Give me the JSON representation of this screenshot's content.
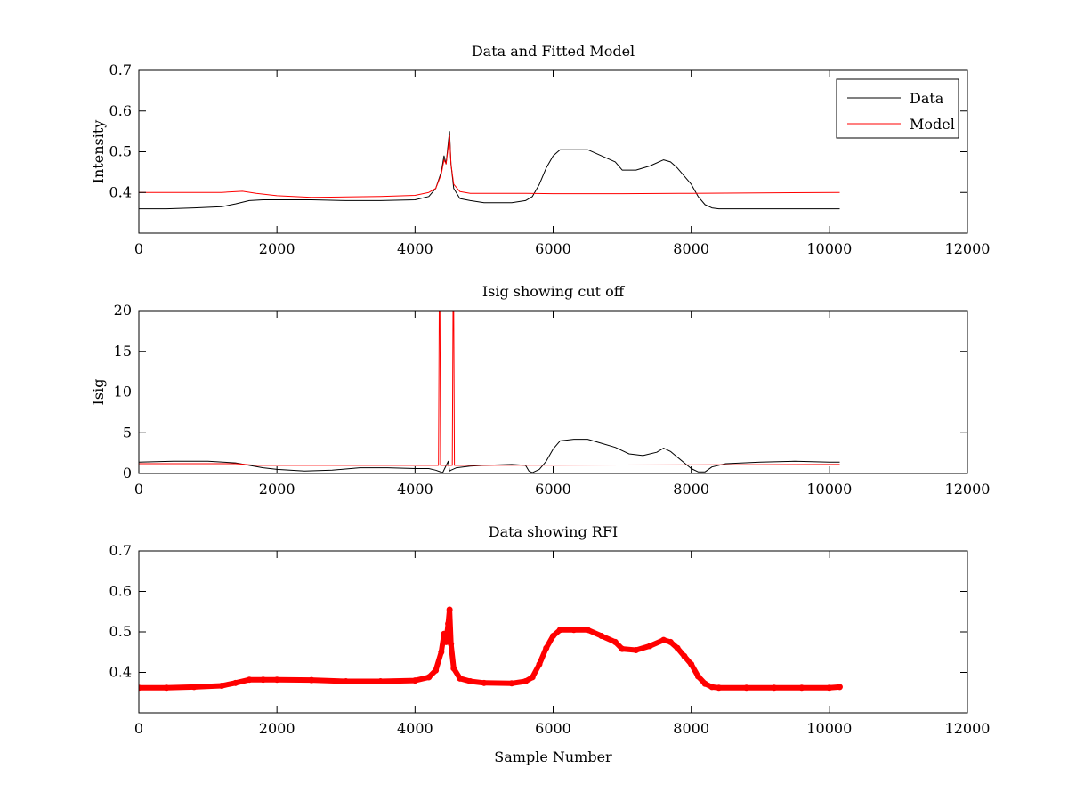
{
  "chart_data": [
    {
      "type": "line",
      "title": "Data and Fitted Model",
      "xlabel": "",
      "ylabel": "Intensity",
      "xlim": [
        0,
        12000
      ],
      "ylim": [
        0.3,
        0.7
      ],
      "xticks": [
        0,
        2000,
        4000,
        6000,
        8000,
        10000,
        12000
      ],
      "xtick_labels": [
        "0",
        "2000",
        "4000",
        "6000",
        "8000",
        "10000",
        "12000"
      ],
      "yticks": [
        0.4,
        0.5,
        0.6,
        0.7
      ],
      "ytick_labels": [
        "0.4",
        "0.5",
        "0.6",
        "0.7"
      ],
      "grid": false,
      "legend": {
        "placement": "top-right",
        "entries": [
          "Data",
          "Model"
        ]
      },
      "series": [
        {
          "name": "Data",
          "color": "#000000",
          "x": [
            0,
            400,
            800,
            1200,
            1400,
            1600,
            1800,
            2000,
            2500,
            3000,
            3500,
            4000,
            4200,
            4300,
            4380,
            4420,
            4450,
            4480,
            4500,
            4520,
            4560,
            4650,
            4800,
            5000,
            5400,
            5600,
            5700,
            5800,
            5900,
            6000,
            6100,
            6300,
            6500,
            6700,
            6900,
            7000,
            7200,
            7400,
            7600,
            7700,
            7800,
            7900,
            8000,
            8100,
            8200,
            8300,
            8400,
            8800,
            9200,
            9600,
            10000,
            10150
          ],
          "y": [
            0.36,
            0.36,
            0.362,
            0.365,
            0.372,
            0.38,
            0.382,
            0.382,
            0.382,
            0.38,
            0.38,
            0.382,
            0.39,
            0.41,
            0.45,
            0.49,
            0.47,
            0.52,
            0.55,
            0.47,
            0.41,
            0.385,
            0.38,
            0.375,
            0.375,
            0.38,
            0.39,
            0.42,
            0.46,
            0.49,
            0.505,
            0.505,
            0.505,
            0.49,
            0.475,
            0.455,
            0.455,
            0.465,
            0.48,
            0.475,
            0.46,
            0.44,
            0.42,
            0.39,
            0.37,
            0.362,
            0.36,
            0.36,
            0.36,
            0.36,
            0.36,
            0.36
          ]
        },
        {
          "name": "Model",
          "color": "#ff0000",
          "x": [
            0,
            1200,
            1500,
            1700,
            2000,
            2500,
            3000,
            3500,
            4000,
            4200,
            4300,
            4380,
            4420,
            4450,
            4480,
            4500,
            4520,
            4560,
            4650,
            4800,
            5000,
            5600,
            6000,
            7000,
            8000,
            9000,
            10150
          ],
          "y": [
            0.4,
            0.4,
            0.403,
            0.398,
            0.392,
            0.388,
            0.389,
            0.39,
            0.393,
            0.4,
            0.41,
            0.445,
            0.48,
            0.47,
            0.51,
            0.54,
            0.47,
            0.42,
            0.402,
            0.398,
            0.398,
            0.398,
            0.397,
            0.397,
            0.398,
            0.399,
            0.4
          ]
        }
      ]
    },
    {
      "type": "line",
      "title": "Isig showing cut off",
      "xlabel": "",
      "ylabel": "Isig",
      "xlim": [
        0,
        12000
      ],
      "ylim": [
        0,
        20
      ],
      "xticks": [
        0,
        2000,
        4000,
        6000,
        8000,
        10000,
        12000
      ],
      "xtick_labels": [
        "0",
        "2000",
        "4000",
        "6000",
        "8000",
        "10000",
        "12000"
      ],
      "yticks": [
        0,
        5,
        10,
        15,
        20
      ],
      "ytick_labels": [
        "0",
        "5",
        "10",
        "15",
        "20"
      ],
      "grid": false,
      "series": [
        {
          "color": "#000000",
          "x": [
            0,
            500,
            1000,
            1400,
            1600,
            1800,
            2000,
            2400,
            2800,
            3200,
            3600,
            4000,
            4200,
            4300,
            4400,
            4480,
            4500,
            4520,
            4600,
            4800,
            5000,
            5400,
            5600,
            5650,
            5700,
            5800,
            5900,
            6000,
            6100,
            6300,
            6500,
            6700,
            6900,
            7100,
            7300,
            7500,
            7600,
            7700,
            7800,
            7900,
            8000,
            8100,
            8200,
            8300,
            8500,
            9000,
            9500,
            10000,
            10150
          ],
          "y": [
            1.4,
            1.5,
            1.5,
            1.3,
            1.0,
            0.7,
            0.5,
            0.3,
            0.4,
            0.7,
            0.7,
            0.6,
            0.6,
            0.4,
            0.1,
            1.5,
            0.3,
            0.4,
            0.7,
            0.9,
            1.0,
            1.1,
            1.0,
            0.3,
            0.1,
            0.5,
            1.5,
            3.0,
            4.0,
            4.2,
            4.2,
            3.7,
            3.2,
            2.4,
            2.2,
            2.6,
            3.1,
            2.7,
            2.0,
            1.3,
            0.6,
            0.2,
            0.2,
            0.8,
            1.2,
            1.4,
            1.5,
            1.4,
            1.4
          ]
        },
        {
          "color": "#ff0000",
          "x": [
            0,
            1400,
            1700,
            4340,
            4350,
            4360,
            4370,
            4540,
            4550,
            4560,
            4570,
            10150
          ],
          "y": [
            1.2,
            1.2,
            1.0,
            1.0,
            20,
            20,
            1.0,
            1.0,
            20,
            20,
            1.0,
            1.1
          ]
        }
      ]
    },
    {
      "type": "scatter",
      "title": "Data showing RFI",
      "xlabel": "Sample Number",
      "ylabel": "",
      "xlim": [
        0,
        12000
      ],
      "ylim": [
        0.3,
        0.7
      ],
      "xticks": [
        0,
        2000,
        4000,
        6000,
        8000,
        10000,
        12000
      ],
      "xtick_labels": [
        "0",
        "2000",
        "4000",
        "6000",
        "8000",
        "10000",
        "12000"
      ],
      "yticks": [
        0.4,
        0.5,
        0.6,
        0.7
      ],
      "ytick_labels": [
        "0.4",
        "0.5",
        "0.6",
        "0.7"
      ],
      "grid": false,
      "series": [
        {
          "color": "#ff0000",
          "x": [
            0,
            400,
            800,
            1200,
            1400,
            1600,
            1800,
            2000,
            2500,
            3000,
            3500,
            4000,
            4200,
            4300,
            4380,
            4420,
            4450,
            4480,
            4500,
            4520,
            4560,
            4650,
            4800,
            5000,
            5400,
            5600,
            5700,
            5800,
            5900,
            6000,
            6100,
            6300,
            6500,
            6700,
            6900,
            7000,
            7200,
            7400,
            7600,
            7700,
            7800,
            7900,
            8000,
            8100,
            8200,
            8300,
            8400,
            8800,
            9200,
            9600,
            10000,
            10150
          ],
          "y": [
            0.362,
            0.362,
            0.364,
            0.367,
            0.374,
            0.382,
            0.382,
            0.382,
            0.381,
            0.378,
            0.378,
            0.38,
            0.388,
            0.405,
            0.45,
            0.495,
            0.475,
            0.52,
            0.555,
            0.47,
            0.41,
            0.385,
            0.378,
            0.374,
            0.373,
            0.378,
            0.388,
            0.42,
            0.46,
            0.49,
            0.505,
            0.505,
            0.505,
            0.49,
            0.475,
            0.458,
            0.455,
            0.465,
            0.48,
            0.475,
            0.46,
            0.44,
            0.42,
            0.39,
            0.372,
            0.364,
            0.362,
            0.362,
            0.362,
            0.362,
            0.362,
            0.364
          ]
        }
      ]
    }
  ]
}
